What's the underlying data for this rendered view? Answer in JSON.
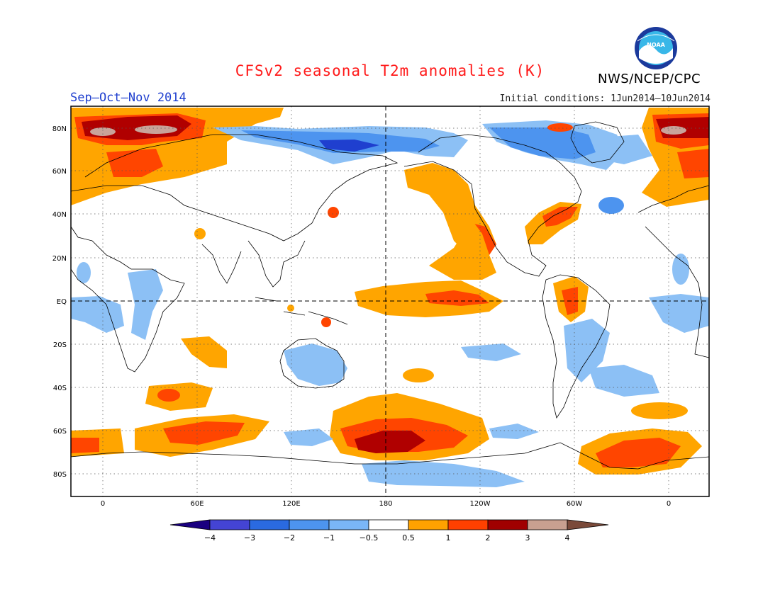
{
  "header": {
    "title": "CFSv2 seasonal T2m anomalies (K)",
    "title_color": "#ff1a1a",
    "agency": "NWS/NCEP/CPC",
    "season": "Sep–Oct–Nov 2014",
    "season_color": "#1f3fcf",
    "initial_conditions": "Initial conditions: 1Jun2014–10Jun2014",
    "logo_icon": "noaa-logo-icon",
    "logo_text": "NOAA"
  },
  "map": {
    "projection": "cylindrical equidistant, centered 180",
    "lat_labels": [
      "80N",
      "60N",
      "40N",
      "20N",
      "EQ",
      "20S",
      "40S",
      "60S",
      "80S"
    ],
    "lon_labels": [
      "0",
      "60E",
      "120E",
      "180",
      "120W",
      "60W",
      "0"
    ],
    "grid": "dotted",
    "reference_lines": [
      "equator",
      "dateline"
    ]
  },
  "colorbar": {
    "labels": [
      "−4",
      "−3",
      "−2",
      "−1",
      "−0.5",
      "0.5",
      "1",
      "2",
      "3",
      "4"
    ],
    "colors": [
      "#1a0080",
      "#4444d4",
      "#2a6ae0",
      "#4d94ef",
      "#7ab6f7",
      "#ffffff",
      "#ffa200",
      "#ff4000",
      "#a00000",
      "#c8a090",
      "#7a4a3a"
    ],
    "unit": "K"
  },
  "anomaly_palette": {
    "cold_3": "#1f3fcf",
    "cold_2": "#2a6ae0",
    "cold_1": "#4d94ef",
    "cold_05": "#8cc0f5",
    "warm_05": "#ffa500",
    "warm_1": "#ff4500",
    "warm_2": "#b00000",
    "warm_3": "#c9a39a"
  }
}
